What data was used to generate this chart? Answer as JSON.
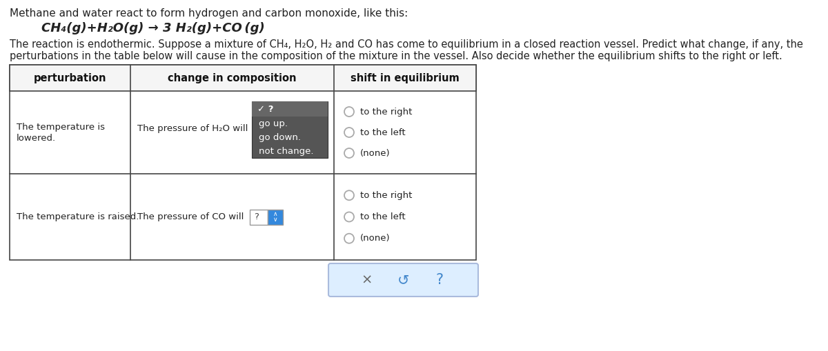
{
  "title_text": "Methane and water react to form hydrogen and carbon monoxide, like this:",
  "equation": "CH₄(g)+H₂O(g) → 3 H₂(g)+CO (g)",
  "body_text1": "The reaction is endothermic. Suppose a mixture of CH₄, H₂O, H₂ and CO has come to equilibrium in a closed reaction vessel. Predict what change, if any, the",
  "body_text2": "perturbations in the table below will cause in the composition of the mixture in the vessel. Also decide whether the equilibrium shifts to the right or left.",
  "col_headers": [
    "perturbation",
    "change in composition",
    "shift in equilibrium"
  ],
  "row1_col1_line1": "The temperature is",
  "row1_col1_line2": "lowered.",
  "row1_col2_prefix": "The pressure of H₂O will",
  "row1_col2_dropdown_label": "✓ ?",
  "row1_col2_dropdown_items": [
    "go up.",
    "go down.",
    "not change."
  ],
  "row1_col3_options": [
    "to the right",
    "to the left",
    "(none)"
  ],
  "row2_col1": "The temperature is raised.",
  "row2_col2": "The pressure of CO will",
  "row2_col2_dropdown": "?",
  "row2_col3_options": [
    "to the right",
    "to the left",
    "(none)"
  ],
  "footer_icons": [
    "×",
    "↺",
    "?"
  ],
  "bg_color": "#ffffff",
  "table_border_color": "#444444",
  "header_bg": "#f8f8f8",
  "dropdown_bg": "#555555",
  "dropdown_header_bg": "#666666",
  "dropdown_text": "#ffffff",
  "footer_bg": "#ddeeff",
  "footer_border": "#aabbdd",
  "radio_color": "#aaaaaa",
  "dropdown2_bg": "#3388dd",
  "text_color": "#222222"
}
